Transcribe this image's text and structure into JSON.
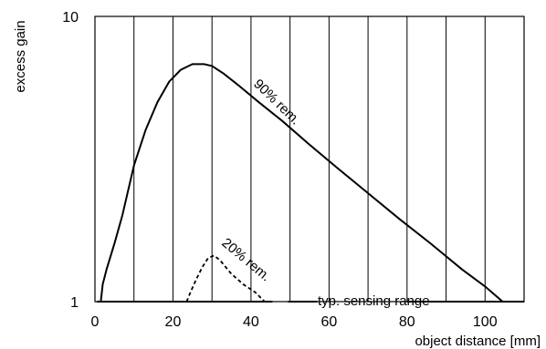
{
  "chart_data": {
    "type": "line",
    "xlabel": "object distance [mm]",
    "ylabel": "excess gain",
    "x_ticks": [
      "0",
      "20",
      "40",
      "60",
      "80",
      "100"
    ],
    "y_ticks": [
      "1",
      "10"
    ],
    "xlim": [
      0,
      110
    ],
    "ylim": [
      1,
      10
    ],
    "y_scale": "log",
    "grid": "vertical every 10 mm",
    "series": [
      {
        "name": "90% rem.",
        "style": "solid",
        "points": [
          [
            1.5,
            1.0
          ],
          [
            2,
            1.15
          ],
          [
            3,
            1.3
          ],
          [
            5,
            1.6
          ],
          [
            7,
            2.0
          ],
          [
            10,
            3.0
          ],
          [
            13,
            4.0
          ],
          [
            16,
            5.0
          ],
          [
            19,
            5.9
          ],
          [
            22,
            6.5
          ],
          [
            25,
            6.8
          ],
          [
            28,
            6.8
          ],
          [
            30,
            6.7
          ],
          [
            33,
            6.3
          ],
          [
            37,
            5.7
          ],
          [
            42,
            5.0
          ],
          [
            48,
            4.3
          ],
          [
            55,
            3.55
          ],
          [
            62,
            2.95
          ],
          [
            70,
            2.4
          ],
          [
            78,
            1.95
          ],
          [
            86,
            1.6
          ],
          [
            94,
            1.3
          ],
          [
            100,
            1.13
          ],
          [
            104.5,
            1.0
          ]
        ]
      },
      {
        "name": "20% rem.",
        "style": "dashed",
        "points": [
          [
            23.5,
            1.0
          ],
          [
            24.5,
            1.08
          ],
          [
            26,
            1.2
          ],
          [
            27.5,
            1.32
          ],
          [
            29,
            1.42
          ],
          [
            30.5,
            1.45
          ],
          [
            32,
            1.4
          ],
          [
            35,
            1.25
          ],
          [
            38,
            1.15
          ],
          [
            41,
            1.08
          ],
          [
            43.5,
            1.0
          ]
        ]
      }
    ],
    "annotations": {
      "series1_label": "90% rem.",
      "series2_label": "20% rem.",
      "range_label": "typ. sensing range"
    },
    "colors": {
      "lines": "#000000",
      "background": "#ffffff"
    }
  }
}
